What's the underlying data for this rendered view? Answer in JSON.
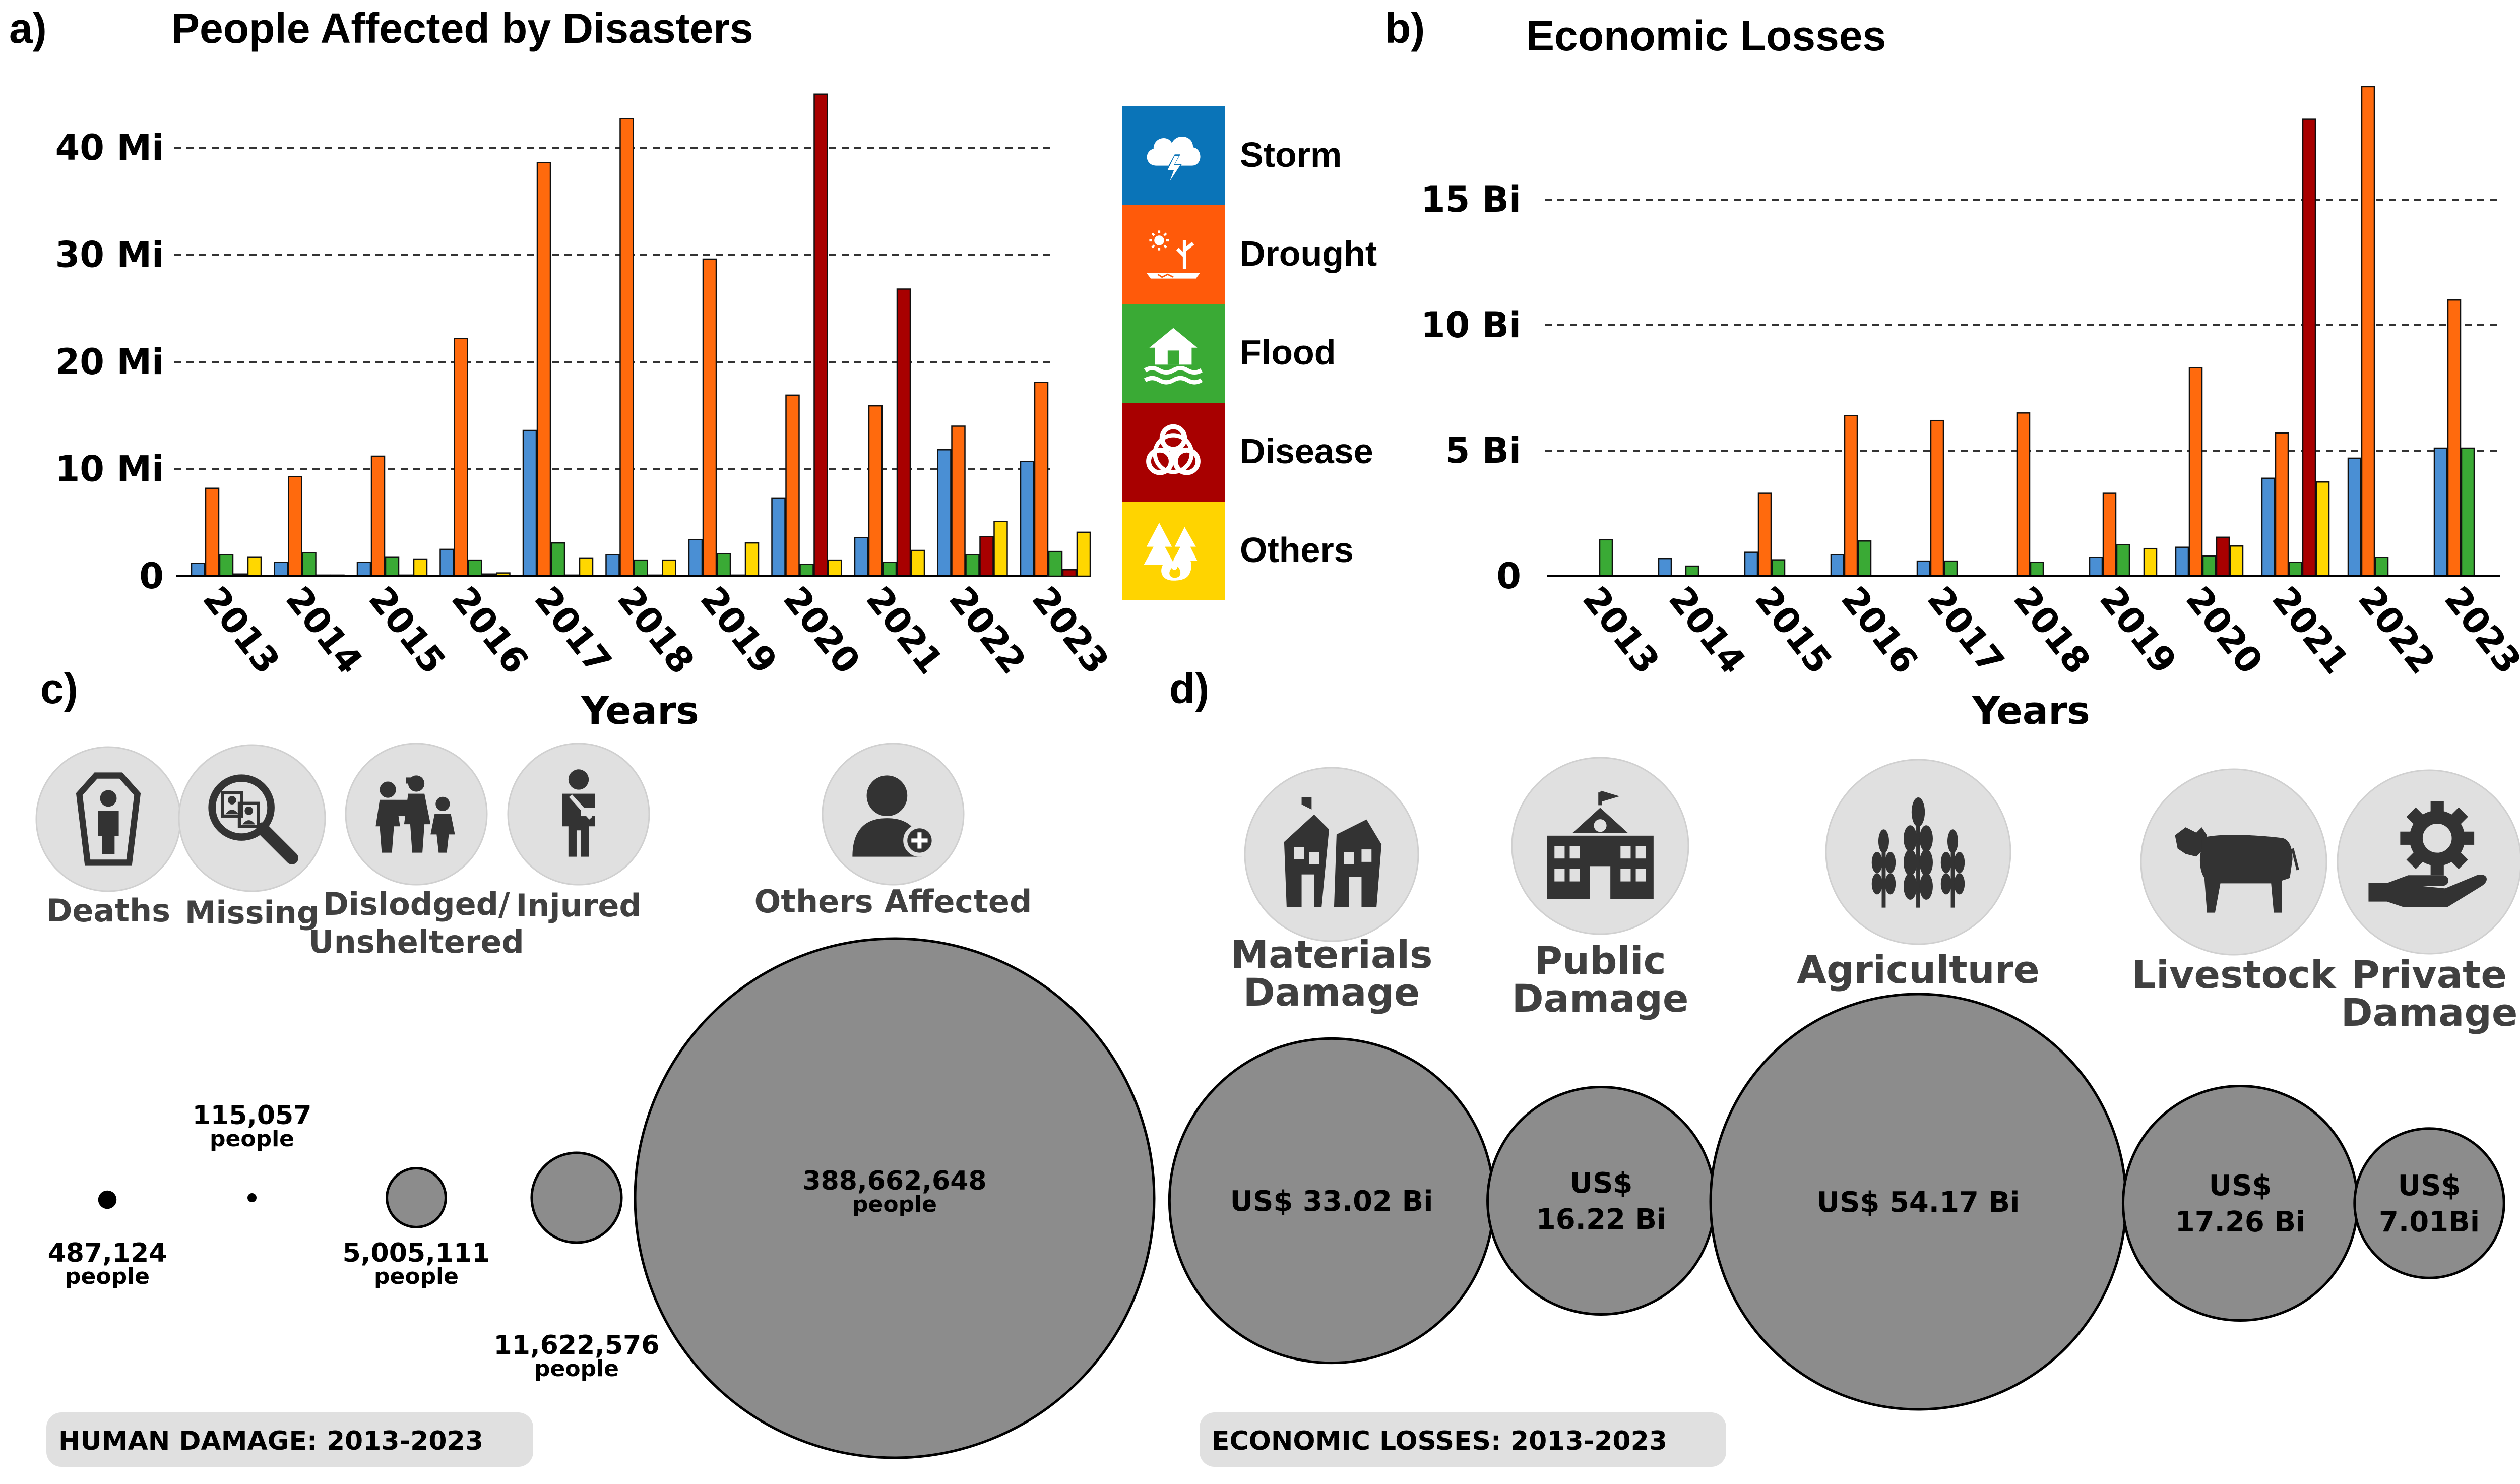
{
  "chart_data": [
    {
      "panel": "a)",
      "type": "bar",
      "title": "People Affected by Disasters",
      "xlabel": "Years",
      "ylabel": "",
      "categories": [
        "2013",
        "2014",
        "2015",
        "2016",
        "2017",
        "2018",
        "2019",
        "2020",
        "2021",
        "2022",
        "2023"
      ],
      "ylim": [
        0,
        45
      ],
      "yticks": [
        {
          "value": 0,
          "label": "0"
        },
        {
          "value": 10,
          "label": "10 Mi"
        },
        {
          "value": 20,
          "label": "20 Mi"
        },
        {
          "value": 30,
          "label": "30 Mi"
        },
        {
          "value": 40,
          "label": "40 Mi"
        }
      ],
      "grid": true,
      "unit": "Millions of people",
      "series": [
        {
          "name": "Storm",
          "color": "#4a8fd4",
          "values": [
            1.2,
            1.3,
            1.3,
            2.5,
            13.6,
            2.0,
            3.4,
            7.3,
            3.6,
            11.8,
            10.7
          ]
        },
        {
          "name": "Drought",
          "color": "#ff6a0d",
          "values": [
            8.2,
            9.3,
            11.2,
            22.2,
            38.6,
            42.7,
            29.6,
            16.9,
            15.9,
            14.0,
            18.1
          ]
        },
        {
          "name": "Flood",
          "color": "#3aaa35",
          "values": [
            2.0,
            2.2,
            1.8,
            1.5,
            3.1,
            1.5,
            2.1,
            1.1,
            1.3,
            2.0,
            2.3
          ]
        },
        {
          "name": "Disease",
          "color": "#a80000",
          "values": [
            0.2,
            0.1,
            0.1,
            0.2,
            0.1,
            0.1,
            0.1,
            45.0,
            26.8,
            3.7,
            0.6
          ]
        },
        {
          "name": "Others",
          "color": "#ffd700",
          "values": [
            1.8,
            0.1,
            1.6,
            0.3,
            1.7,
            1.5,
            3.1,
            1.5,
            2.4,
            5.1,
            4.1
          ]
        }
      ]
    },
    {
      "panel": "b)",
      "type": "bar",
      "title": "Economic Losses",
      "xlabel": "Years",
      "ylabel": "",
      "categories": [
        "2013",
        "2014",
        "2015",
        "2016",
        "2017",
        "2018",
        "2019",
        "2020",
        "2021",
        "2022",
        "2023"
      ],
      "ylim": [
        0,
        19.5
      ],
      "yticks": [
        {
          "value": 0,
          "label": "0"
        },
        {
          "value": 5,
          "label": "5 Bi"
        },
        {
          "value": 10,
          "label": "10 Bi"
        },
        {
          "value": 15,
          "label": "15 Bi"
        }
      ],
      "grid": true,
      "unit": "Billions of US$",
      "series": [
        {
          "name": "Storm",
          "color": "#4a8fd4",
          "values": [
            0,
            0.7,
            0.95,
            0.85,
            0.6,
            0,
            0.75,
            1.15,
            3.9,
            4.7,
            5.1
          ]
        },
        {
          "name": "Drought",
          "color": "#ff6a0d",
          "values": [
            0,
            0,
            3.3,
            6.4,
            6.2,
            6.5,
            3.3,
            8.3,
            5.7,
            19.5,
            11.0
          ]
        },
        {
          "name": "Flood",
          "color": "#3aaa35",
          "values": [
            1.45,
            0.4,
            0.65,
            1.4,
            0.6,
            0.55,
            1.25,
            0.8,
            0.55,
            0.75,
            5.1
          ]
        },
        {
          "name": "Disease",
          "color": "#a80000",
          "values": [
            0,
            0,
            0,
            0,
            0,
            0,
            0,
            1.55,
            18.2,
            0,
            0
          ]
        },
        {
          "name": "Others",
          "color": "#ffd700",
          "values": [
            0,
            0,
            0,
            0,
            0,
            0,
            1.1,
            1.2,
            3.75,
            0,
            0
          ]
        }
      ]
    },
    {
      "panel": "c)",
      "type": "bubble",
      "title": "HUMAN DAMAGE: 2013-2023",
      "items": [
        {
          "label": "Deaths",
          "label_lines": [
            "Deaths"
          ],
          "value": 487124,
          "value_text": "487,124",
          "unit_text": "people"
        },
        {
          "label": "Missing",
          "label_lines": [
            "Missing"
          ],
          "value": 115057,
          "value_text": "115,057",
          "unit_text": "people"
        },
        {
          "label": "Dislodged/ Unsheltered",
          "label_lines": [
            "Dislodged/",
            "Unsheltered"
          ],
          "value": 5005111,
          "value_text": "5,005,111",
          "unit_text": "people"
        },
        {
          "label": "Injured",
          "label_lines": [
            "Injured"
          ],
          "value": 11622576,
          "value_text": "11,622,576",
          "unit_text": "people"
        },
        {
          "label": "Others Affected",
          "label_lines": [
            "Others Affected"
          ],
          "value": 388662648,
          "value_text": "388,662,648",
          "unit_text": "people"
        }
      ]
    },
    {
      "panel": "d)",
      "type": "bubble",
      "title": "ECONOMIC LOSSES: 2013-2023",
      "items": [
        {
          "label": "Materials Damage",
          "label_lines": [
            "Materials",
            "Damage"
          ],
          "value": 33.02,
          "value_lines": [
            "US$ 33.02 Bi"
          ]
        },
        {
          "label": "Public Damage",
          "label_lines": [
            "Public",
            "Damage"
          ],
          "value": 16.22,
          "value_lines": [
            "US$",
            "16.22 Bi"
          ]
        },
        {
          "label": "Agriculture",
          "label_lines": [
            "Agriculture"
          ],
          "value": 54.17,
          "value_lines": [
            "US$ 54.17 Bi"
          ]
        },
        {
          "label": "Livestock",
          "label_lines": [
            "Livestock"
          ],
          "value": 17.26,
          "value_lines": [
            "US$",
            "17.26 Bi"
          ]
        },
        {
          "label": "Private Damage",
          "label_lines": [
            "Private",
            "Damage"
          ],
          "value": 7.01,
          "value_lines": [
            "US$",
            "7.01Bi"
          ]
        }
      ]
    }
  ],
  "legend": [
    {
      "label": "Storm",
      "color": "#0a74b8",
      "icon": "storm-icon"
    },
    {
      "label": "Drought",
      "color": "#ff5a0a",
      "icon": "drought-icon"
    },
    {
      "label": "Flood",
      "color": "#3aaa35",
      "icon": "flood-icon"
    },
    {
      "label": "Disease",
      "color": "#a80000",
      "icon": "biohazard-icon"
    },
    {
      "label": "Others",
      "color": "#ffd400",
      "icon": "fire-icon"
    }
  ],
  "colors": {
    "bubble": "#8c8c8c",
    "icon_bg": "#e0e0e0",
    "icon_fg": "#333333",
    "banner": "#e0e0e0"
  }
}
